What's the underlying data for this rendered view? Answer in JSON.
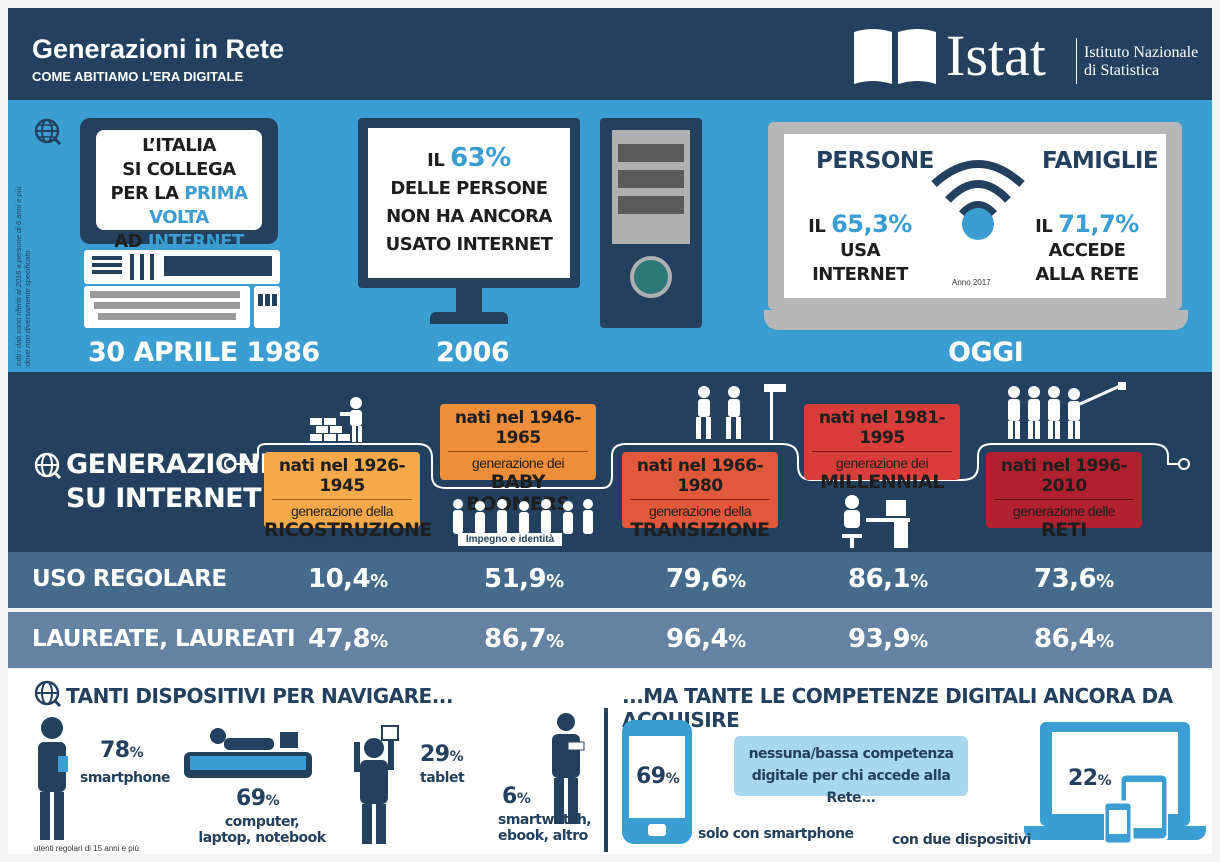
{
  "header": {
    "title": "Generazioni in Rete",
    "subtitle": "COME ABITIAMO L’ERA DIGITALE",
    "logo_word": "Istat",
    "institute_line1": "Istituto Nazionale",
    "institute_line2": "di Statistica"
  },
  "side_note": "tutti i dati sono riferiti al 2016 a persone di 6 anni e più dove non diversamente specificato",
  "timeline": {
    "first": {
      "line1": "L’ITALIA",
      "line2": "SI COLLEGA",
      "line3a": "PER LA ",
      "line3b": "PRIMA VOLTA",
      "line4a": "AD ",
      "line4b": "INTERNET",
      "date": "30 APRILE 1986"
    },
    "mid": {
      "pre": "IL ",
      "pct": "63%",
      "line2": "DELLE PERSONE",
      "line3": "NON HA ANCORA",
      "line4": "USATO INTERNET",
      "date": "2006"
    },
    "today": {
      "persons_label": "PERSONE",
      "persons_pre": "IL ",
      "persons_pct": "65,3%",
      "persons_text": "USA INTERNET",
      "families_label": "FAMIGLIE",
      "families_pre": "IL ",
      "families_pct": "71,7%",
      "families_text1": "ACCEDE",
      "families_text2": "ALLA RETE",
      "year_note": "Anno 2017",
      "date": "OGGI"
    }
  },
  "generations": {
    "title1": "GENERAZIONI",
    "title2": "SU INTERNET",
    "label_della": "generazione della",
    "label_dei": "generazione dei",
    "label_delle": "generazione delle",
    "items": [
      {
        "years": "nati nel 1926-1945",
        "name": "RICOSTRUZIONE",
        "color": "#f6a94b"
      },
      {
        "years": "nati nel 1946-1965",
        "name": "BABY BOOMERS",
        "color": "#ef8e3a"
      },
      {
        "years": "nati nel 1966-1980",
        "name": "TRANSIZIONE",
        "color": "#e2583a"
      },
      {
        "years": "nati nel 1981-1995",
        "name": "MILLENNIAL",
        "color": "#d83d3a"
      },
      {
        "years": "nati nel 1996-2010",
        "name": "RETI",
        "color": "#b0202e"
      }
    ],
    "impegno": "Impegno e identità"
  },
  "stats": {
    "regular_label": "USO REGOLARE",
    "regular": [
      "10,4",
      "51,9",
      "79,6",
      "86,1",
      "73,6"
    ],
    "graduates_label": "LAUREATE, LAUREATI",
    "graduates": [
      "47,8",
      "86,7",
      "96,4",
      "93,9",
      "86,4"
    ],
    "unit": "%"
  },
  "devices": {
    "title": "TANTI DISPOSITIVI PER NAVIGARE...",
    "smartphone_pct": "78",
    "smartphone_lbl": "smartphone",
    "computer_pct": "69",
    "computer_lbl1": "computer,",
    "computer_lbl2": "laptop, notebook",
    "tablet_pct": "29",
    "tablet_lbl": "tablet",
    "other_pct": "6",
    "other_lbl1": "smartwatch,",
    "other_lbl2": "ebook, altro",
    "note": "utenti regolari di 15 anni e più"
  },
  "skills": {
    "title": "...MA TANTE LE COMPETENZE DIGITALI ANCORA DA ACQUISIRE",
    "bubble1": "nessuna/bassa competenza",
    "bubble2": "digitale per chi accede alla Rete...",
    "phone_pct": "69",
    "phone_lbl": "solo con smartphone",
    "two_pct": "22",
    "two_lbl": "con due dispositivi"
  },
  "colors": {
    "navy": "#23405f",
    "blue": "#3b9ed3",
    "row1": "#466a8c",
    "row2": "#6482a1"
  }
}
